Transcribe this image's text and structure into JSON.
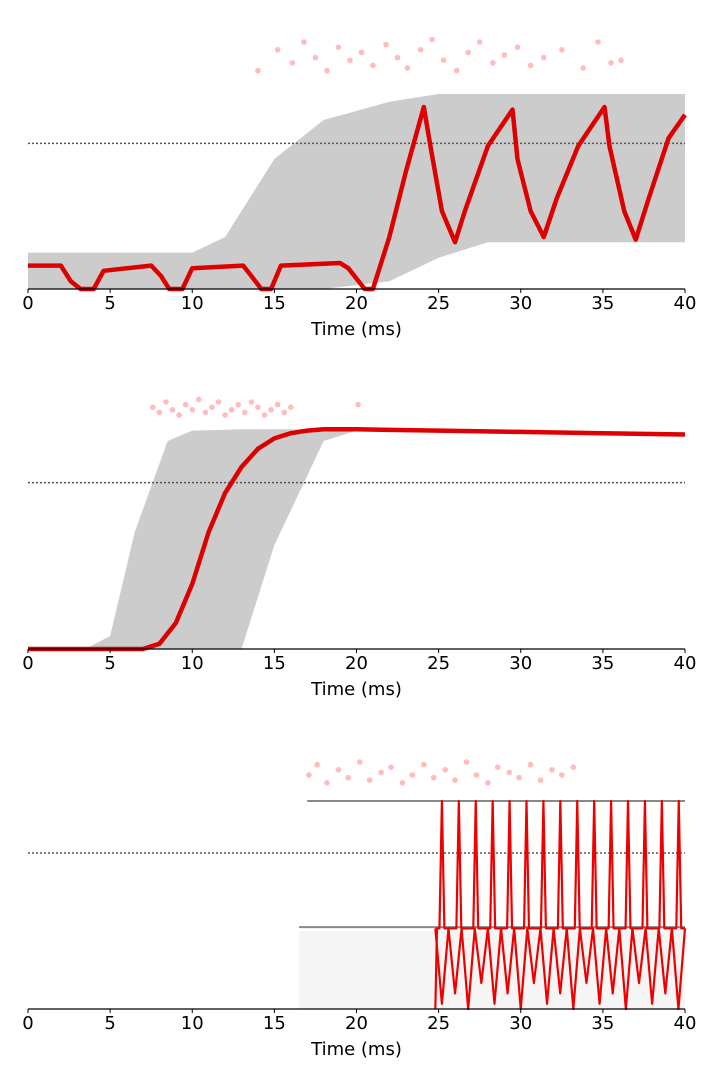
{
  "chart_data": [
    {
      "type": "line",
      "xlabel": "Time (ms)",
      "xlim": [
        0,
        40
      ],
      "xticks": [
        0,
        5,
        10,
        15,
        20,
        25,
        30,
        35,
        40
      ],
      "ylim": [
        0,
        1
      ],
      "threshold": 0.56,
      "band": {
        "color": "#808080",
        "x": [
          0,
          10,
          12,
          15,
          18,
          22,
          25,
          28,
          30,
          40
        ],
        "low": [
          0,
          0,
          0,
          0,
          0,
          0.03,
          0.12,
          0.18,
          0.18,
          0.18
        ],
        "high": [
          0.14,
          0.14,
          0.2,
          0.5,
          0.65,
          0.72,
          0.75,
          0.75,
          0.75,
          0.75
        ]
      },
      "series": [
        {
          "color": "#dd0000",
          "x": [
            0,
            2,
            2.6,
            3.2,
            4,
            4.6,
            7.5,
            8.1,
            8.6,
            9.4,
            10,
            13.1,
            13.6,
            14.2,
            14.8,
            15.4,
            19,
            19.5,
            20.5,
            21,
            22,
            23,
            24.1,
            24.5,
            25.2,
            26,
            26.6,
            28,
            29.5,
            29.8,
            30.6,
            31.4,
            32.2,
            33.5,
            35.1,
            35.4,
            36.3,
            37,
            37.8,
            39,
            40
          ],
          "values": [
            0.09,
            0.09,
            0.03,
            0,
            0,
            0.07,
            0.09,
            0.05,
            0,
            0,
            0.08,
            0.09,
            0.05,
            0,
            0,
            0.09,
            0.1,
            0.08,
            0,
            0,
            0.2,
            0.45,
            0.7,
            0.55,
            0.3,
            0.18,
            0.3,
            0.55,
            0.69,
            0.5,
            0.3,
            0.2,
            0.35,
            0.55,
            0.7,
            0.55,
            0.3,
            0.19,
            0.35,
            0.58,
            0.67
          ]
        }
      ],
      "events": {
        "color": "#ff4040",
        "x": [
          15.2,
          16.1,
          16.8,
          17.5,
          18.2,
          18.9,
          19.6,
          20.3,
          21.0,
          21.8,
          22.5,
          23.1,
          23.9,
          24.6,
          25.3,
          26.1,
          26.8,
          27.5,
          28.3,
          29.0,
          29.8,
          30.6,
          31.4,
          32.5,
          33.8,
          34.7,
          35.5,
          14.0,
          36.1
        ],
        "y": [
          0.92,
          0.87,
          0.95,
          0.89,
          0.84,
          0.93,
          0.88,
          0.91,
          0.86,
          0.94,
          0.89,
          0.85,
          0.92,
          0.96,
          0.88,
          0.84,
          0.91,
          0.95,
          0.87,
          0.9,
          0.93,
          0.86,
          0.89,
          0.92,
          0.85,
          0.95,
          0.87,
          0.84,
          0.88
        ]
      }
    },
    {
      "type": "line",
      "xlabel": "Time (ms)",
      "xlim": [
        0,
        40
      ],
      "xticks": [
        0,
        5,
        10,
        15,
        20,
        25,
        30,
        35,
        40
      ],
      "ylim": [
        0,
        1
      ],
      "threshold": 0.64,
      "band": {
        "color": "#808080",
        "x": [
          0,
          3.5,
          5,
          6.5,
          8.5,
          10,
          13,
          15,
          18,
          20,
          40
        ],
        "low": [
          0,
          0,
          0,
          0,
          0,
          0,
          0,
          0.4,
          0.8,
          0.84,
          0.82
        ],
        "high": [
          0,
          0,
          0.05,
          0.45,
          0.8,
          0.84,
          0.845,
          0.845,
          0.845,
          0.845,
          0.83
        ]
      },
      "series": [
        {
          "color": "#dd0000",
          "x": [
            0,
            7,
            8,
            9,
            10,
            11,
            12,
            13,
            14,
            15,
            16,
            17,
            18,
            20,
            25,
            30,
            35,
            40
          ],
          "values": [
            0,
            0,
            0.02,
            0.1,
            0.25,
            0.45,
            0.6,
            0.7,
            0.77,
            0.81,
            0.83,
            0.84,
            0.845,
            0.845,
            0.84,
            0.835,
            0.83,
            0.825
          ]
        }
      ],
      "events": {
        "color": "#ff4040",
        "x": [
          7.6,
          8.0,
          8.4,
          8.8,
          9.2,
          9.6,
          10.0,
          10.4,
          10.8,
          11.2,
          11.6,
          12.0,
          12.4,
          12.8,
          13.2,
          13.6,
          14.0,
          14.4,
          14.8,
          15.2,
          15.6,
          16.0,
          20.1
        ],
        "y": [
          0.93,
          0.91,
          0.95,
          0.92,
          0.9,
          0.94,
          0.92,
          0.96,
          0.91,
          0.93,
          0.95,
          0.9,
          0.92,
          0.94,
          0.91,
          0.95,
          0.93,
          0.9,
          0.92,
          0.94,
          0.91,
          0.93,
          0.94
        ]
      }
    },
    {
      "type": "line",
      "xlabel": "Time (ms)",
      "xlim": [
        0,
        40
      ],
      "xticks": [
        0,
        5,
        10,
        15,
        20,
        25,
        30,
        35,
        40
      ],
      "ylim": [
        0,
        1
      ],
      "threshold": 0.6,
      "band": {
        "color": "#b0b0b0",
        "x": [
          16.5,
          17,
          24.8,
          40
        ],
        "low": [
          0,
          0,
          0,
          0
        ],
        "high": [
          0.3,
          0.3,
          0.3,
          0.3
        ]
      },
      "series": [
        {
          "color": "#888888",
          "x": [
            17,
            40
          ],
          "values": [
            0.8,
            0.8
          ]
        },
        {
          "color": "#888888",
          "x": [
            16.5,
            40
          ],
          "values": [
            0.315,
            0.315
          ]
        },
        {
          "color": "#ee0000",
          "x": [
            24.8,
            24.9,
            25.05,
            25.2,
            25.35,
            26.08,
            26.23,
            26.38,
            27.11,
            27.26,
            27.41,
            28.14,
            28.29,
            28.44,
            29.17,
            29.32,
            29.47,
            30.2,
            30.35,
            30.5,
            31.23,
            31.38,
            31.53,
            32.26,
            32.41,
            32.56,
            33.29,
            33.44,
            33.59,
            34.32,
            34.47,
            34.62,
            35.35,
            35.5,
            35.65,
            36.38,
            36.53,
            36.68,
            37.41,
            37.56,
            37.71,
            38.44,
            38.59,
            38.74,
            39.47,
            39.62,
            39.77,
            40
          ],
          "values": [
            0,
            0.31,
            0.31,
            0.8,
            0.31,
            0.31,
            0.8,
            0.31,
            0.31,
            0.8,
            0.31,
            0.31,
            0.8,
            0.31,
            0.31,
            0.8,
            0.31,
            0.31,
            0.8,
            0.31,
            0.31,
            0.8,
            0.31,
            0.31,
            0.8,
            0.31,
            0.31,
            0.8,
            0.31,
            0.31,
            0.8,
            0.31,
            0.31,
            0.8,
            0.31,
            0.31,
            0.8,
            0.31,
            0.31,
            0.8,
            0.31,
            0.31,
            0.8,
            0.31,
            0.31,
            0.8,
            0.31,
            0.31
          ]
        },
        {
          "color": "#ee0000",
          "x": [
            24.8,
            25.2,
            25.6,
            26,
            26.4,
            26.8,
            27.2,
            27.6,
            28,
            28.4,
            28.8,
            29.2,
            29.6,
            30,
            30.4,
            30.8,
            31.2,
            31.6,
            32,
            32.4,
            32.8,
            33.2,
            33.6,
            34,
            34.4,
            34.8,
            35.2,
            35.6,
            36,
            36.4,
            36.8,
            37.2,
            37.6,
            38,
            38.4,
            38.8,
            39.2,
            39.6,
            40
          ],
          "values": [
            0.31,
            0.02,
            0.31,
            0.06,
            0.31,
            0,
            0.31,
            0.1,
            0.31,
            0.02,
            0.31,
            0.06,
            0.31,
            0,
            0.31,
            0.1,
            0.31,
            0.02,
            0.31,
            0.06,
            0.31,
            0,
            0.31,
            0.1,
            0.31,
            0.02,
            0.31,
            0.06,
            0.31,
            0,
            0.31,
            0.1,
            0.31,
            0.02,
            0.31,
            0.06,
            0.31,
            0,
            0.31
          ]
        }
      ],
      "events": {
        "color": "#ff4040",
        "x": [
          17.1,
          17.6,
          18.2,
          18.9,
          19.5,
          20.2,
          20.8,
          21.5,
          22.1,
          22.8,
          23.4,
          24.1,
          24.7,
          25.4,
          26.0,
          26.7,
          27.3,
          28.0,
          28.6,
          29.3,
          29.9,
          30.6,
          31.2,
          31.9,
          32.5,
          33.2
        ],
        "y": [
          0.9,
          0.94,
          0.87,
          0.92,
          0.89,
          0.95,
          0.88,
          0.91,
          0.93,
          0.87,
          0.9,
          0.94,
          0.89,
          0.92,
          0.88,
          0.95,
          0.9,
          0.87,
          0.93,
          0.91,
          0.89,
          0.94,
          0.88,
          0.92,
          0.9,
          0.93
        ]
      }
    }
  ]
}
